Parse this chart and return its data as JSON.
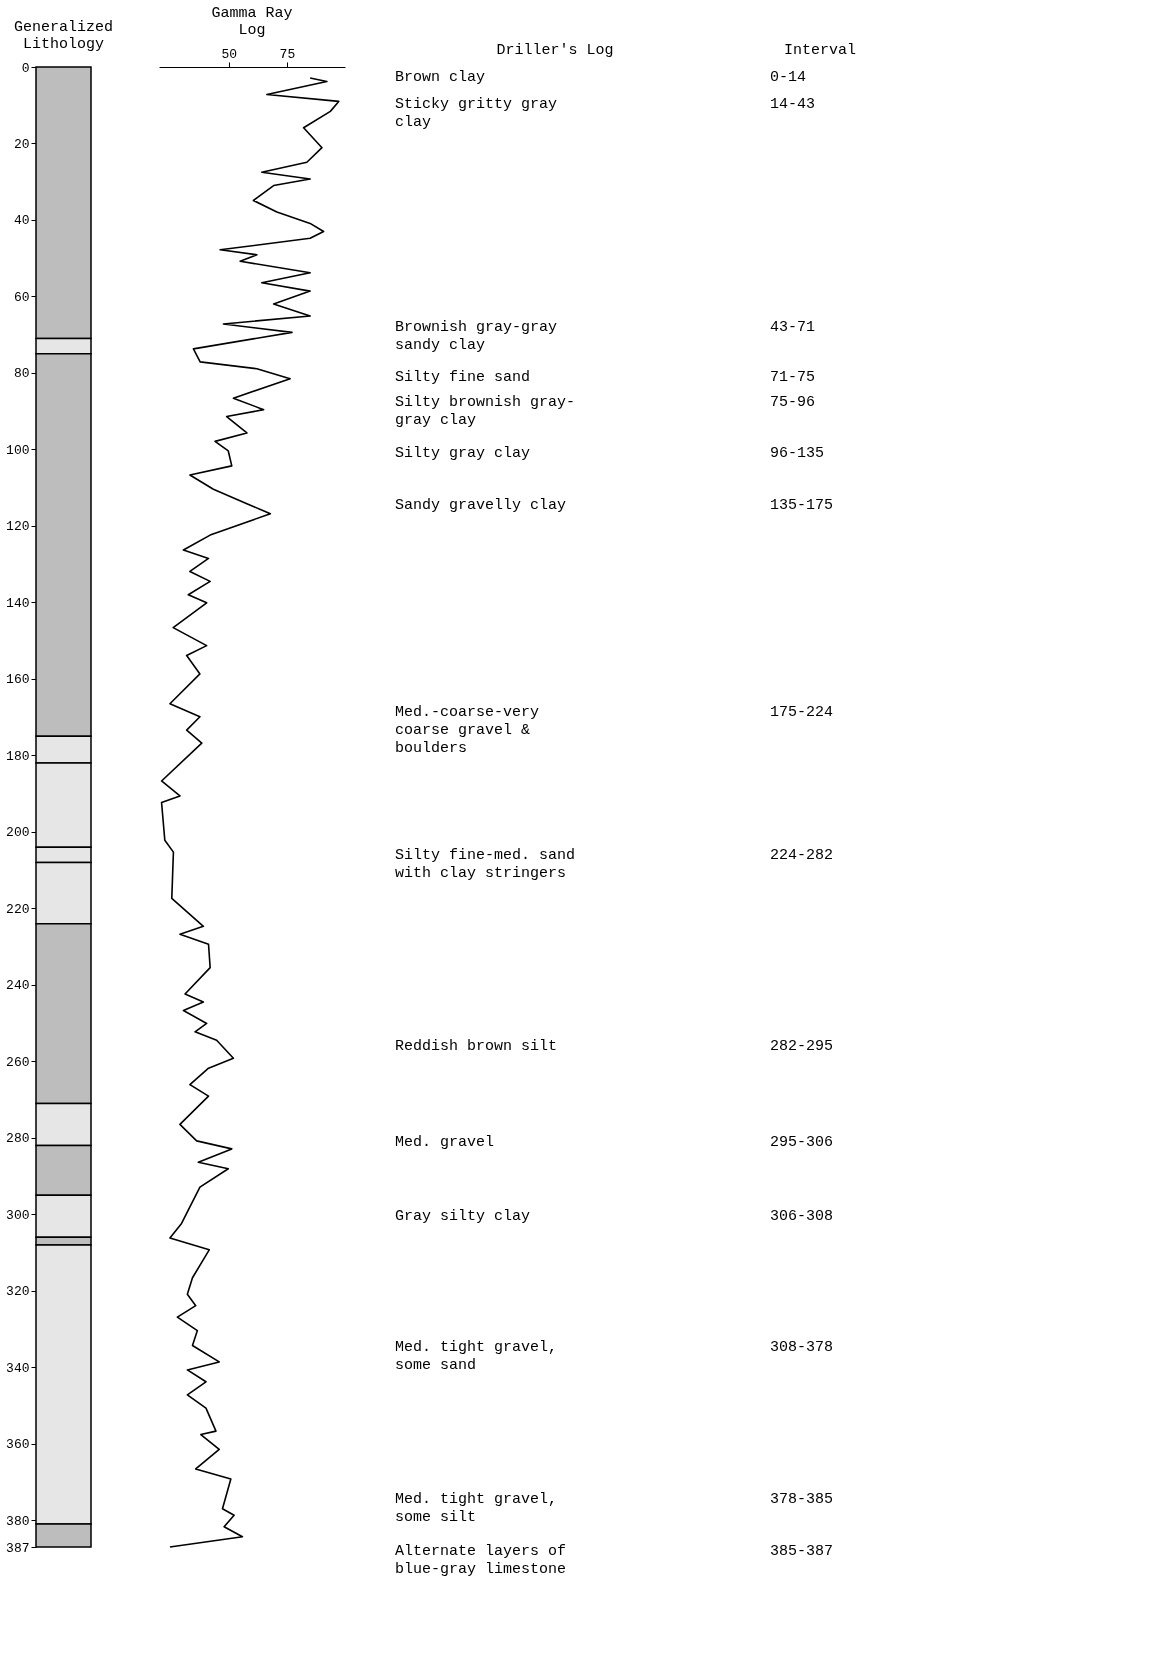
{
  "chart_data": [
    {
      "type": "bar",
      "title": "Generalized\nLithology",
      "stacked": true,
      "categories": [
        null
      ],
      "ylim": [
        387,
        0
      ],
      "yticks": [
        0,
        20,
        40,
        60,
        80,
        100,
        120,
        140,
        160,
        180,
        200,
        220,
        240,
        260,
        280,
        300,
        320,
        340,
        360,
        380,
        387
      ],
      "tick_labels": "y",
      "legend": false,
      "grid": false,
      "series": [
        {
          "color": "#bdbdbd",
          "values": [
            71
          ]
        },
        {
          "color": "#e6e6e6",
          "values": [
            4
          ]
        },
        {
          "color": "#bdbdbd",
          "values": [
            100
          ]
        },
        {
          "color": "#e6e6e6",
          "values": [
            7
          ]
        },
        {
          "color": "#e6e6e6",
          "values": [
            22
          ]
        },
        {
          "color": "#e6e6e6",
          "values": [
            4
          ]
        },
        {
          "color": "#e6e6e6",
          "values": [
            16
          ]
        },
        {
          "color": "#bdbdbd",
          "values": [
            47
          ]
        },
        {
          "color": "#e6e6e6",
          "values": [
            11
          ]
        },
        {
          "color": "#bdbdbd",
          "values": [
            13
          ]
        },
        {
          "color": "#e6e6e6",
          "values": [
            11
          ]
        },
        {
          "color": "#bdbdbd",
          "values": [
            2
          ]
        },
        {
          "color": "#e6e6e6",
          "values": [
            73
          ]
        },
        {
          "color": "#bdbdbd",
          "values": [
            6
          ]
        }
      ]
    },
    {
      "type": "line",
      "title": "Gamma Ray\nLog",
      "orientation": "horizontal",
      "xlim": [
        20,
        100
      ],
      "xticks": [
        50,
        75
      ],
      "ylim": [
        387,
        0
      ],
      "tick_labels": "x",
      "grid": false,
      "x": [
        2.9,
        3.8,
        7.2,
        9.0,
        11.6,
        15.9,
        21.1,
        24.9,
        27.5,
        29.3,
        31.0,
        34.9,
        37.9,
        40.9,
        43.0,
        44.8,
        47.8,
        49.1,
        50.8,
        53.8,
        56.4,
        58.6,
        62.0,
        65.1,
        67.2,
        69.4,
        73.7,
        77.1,
        78.9,
        81.5,
        86.6,
        89.6,
        91.4,
        95.7,
        97.9,
        100.4,
        104.3,
        106.7,
        110.4,
        114.2,
        116.8,
        122.4,
        126.3,
        128.5,
        131.9,
        134.5,
        138.0,
        140.1,
        146.6,
        151.3,
        153.9,
        158.7,
        166.5,
        169.9,
        173.4,
        176.8,
        186.7,
        190.6,
        192.3,
        202.2,
        205.3,
        217.4,
        224.7,
        226.8,
        229.4,
        235.5,
        242.4,
        244.5,
        246.7,
        250.1,
        252.3,
        254.5,
        259.2,
        261.8,
        266.1,
        269.1,
        276.5,
        280.8,
        282.9,
        286.4,
        288.1,
        292.9,
        302.4,
        306.2,
        309.3,
        316.6,
        320.9,
        323.9,
        326.9,
        330.4,
        334.3,
        338.6,
        340.7,
        343.8,
        347.2,
        350.7,
        356.7,
        357.6,
        361.5,
        366.6,
        369.2,
        377.0,
        378.7,
        381.7,
        384.3,
        387
      ],
      "series": [
        {
          "color": "#000000",
          "values": [
            85.0,
            92.2,
            66.4,
            97.3,
            93.7,
            82.2,
            90.1,
            83.6,
            64.2,
            85.0,
            69.3,
            60.6,
            70.7,
            85.0,
            90.8,
            85.0,
            46.3,
            62.1,
            54.9,
            85.0,
            64.2,
            85.0,
            69.3,
            85.0,
            47.7,
            77.2,
            34.8,
            37.7,
            62.1,
            76.4,
            52.0,
            65.0,
            49.1,
            57.8,
            44.1,
            49.8,
            51.3,
            33.3,
            43.4,
            57.8,
            67.9,
            42.0,
            30.5,
            41.3,
            33.3,
            42.0,
            32.6,
            40.5,
            26.1,
            40.5,
            31.9,
            37.6,
            24.7,
            37.6,
            31.9,
            38.4,
            21.1,
            29.0,
            21.1,
            22.5,
            26.2,
            25.5,
            39.1,
            29.0,
            41.3,
            42.0,
            31.2,
            39.1,
            30.5,
            40.5,
            35.5,
            44.8,
            52.0,
            41.3,
            33.3,
            41.3,
            29.0,
            36.2,
            51.3,
            36.9,
            49.8,
            37.6,
            29.7,
            24.7,
            41.6,
            34.4,
            32.2,
            35.8,
            27.9,
            36.5,
            34.4,
            45.9,
            32.2,
            40.2,
            32.2,
            40.2,
            44.5,
            38.0,
            45.9,
            35.8,
            50.9,
            47.3,
            52.3,
            48.0,
            55.9,
            24.7
          ]
        }
      ]
    },
    {
      "type": "other",
      "title": "Driller's Log",
      "annotations": [
        "Brown clay",
        "Sticky gritty gray\nclay",
        "Brownish gray-gray\nsandy clay",
        "Silty fine sand",
        "Silty brownish gray-\ngray clay",
        "Silty gray clay",
        "Sandy gravelly clay",
        "Med.-coarse-very\ncoarse gravel &\nboulders",
        "Silty fine-med. sand\nwith clay stringers",
        "Reddish brown silt",
        "Med. gravel",
        "Gray silty clay",
        "Med. tight gravel,\nsome sand",
        "Med. tight gravel,\nsome silt",
        "Alternate layers of\nblue-gray limestone"
      ]
    },
    {
      "type": "other",
      "title": "Interval",
      "annotations": [
        "0-14",
        "14-43",
        "43-71",
        "71-75",
        "75-96",
        "96-135",
        "135-175",
        "175-224",
        "224-282",
        "282-295",
        "295-306",
        "306-308",
        "308-378",
        "378-385",
        "385-387"
      ]
    }
  ]
}
